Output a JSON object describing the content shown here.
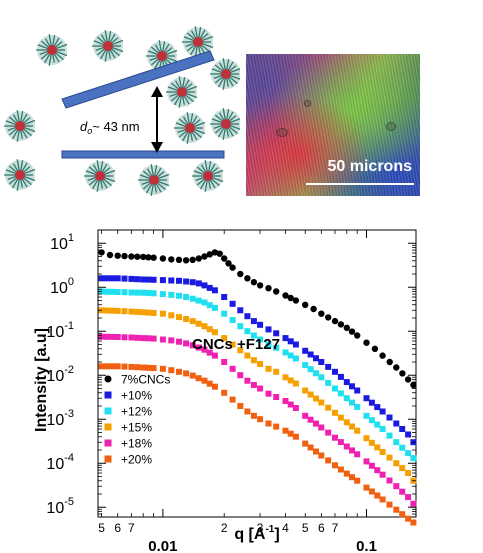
{
  "schematic": {
    "spacing_label": "d",
    "spacing_subscript": "o",
    "spacing_value": "~ 43 nm",
    "colors": {
      "bar": "#4a72c0",
      "bar_stroke": "#2a4a90",
      "micelle_shell": "#2e7a6e",
      "micelle_core": "#c0303a"
    }
  },
  "micrograph": {
    "scale_label": "50 microns"
  },
  "chart_data": {
    "type": "scatter",
    "x_scale": "log",
    "y_scale": "log",
    "xlim": [
      0.0048,
      0.175
    ],
    "ylim": [
      6e-06,
      20
    ],
    "xlabel": "q [A",
    "xlabel_sup": "-1",
    "xlabel_end": "]",
    "ylabel": "Intensity [a.u]",
    "annotation": "CNCs +F127",
    "x_major_ticks": [
      {
        "value": 0.01,
        "label": "0.01"
      },
      {
        "value": 0.1,
        "label": "0.1"
      }
    ],
    "x_minor_ticks": [
      {
        "value": 0.005,
        "label": "5"
      },
      {
        "value": 0.006,
        "label": "6"
      },
      {
        "value": 0.007,
        "label": "7"
      },
      {
        "value": 0.02,
        "label": "2"
      },
      {
        "value": 0.03,
        "label": "3"
      },
      {
        "value": 0.04,
        "label": "4"
      },
      {
        "value": 0.05,
        "label": "5"
      },
      {
        "value": 0.06,
        "label": "6"
      },
      {
        "value": 0.07,
        "label": "7"
      }
    ],
    "y_ticks": [
      {
        "value": 10,
        "base": "10",
        "exp": "1"
      },
      {
        "value": 1,
        "base": "10",
        "exp": "0"
      },
      {
        "value": 0.1,
        "base": "10",
        "exp": "-1"
      },
      {
        "value": 0.01,
        "base": "10",
        "exp": "-2"
      },
      {
        "value": 0.001,
        "base": "10",
        "exp": "-3"
      },
      {
        "value": 0.0001,
        "base": "10",
        "exp": "-4"
      },
      {
        "value": 1e-05,
        "base": "10",
        "exp": "-5"
      }
    ],
    "series": [
      {
        "name": "7%CNCs",
        "color": "#000000",
        "marker": "circle",
        "points": [
          [
            0.005,
            6.2
          ],
          [
            0.0055,
            5.4
          ],
          [
            0.006,
            5.2
          ],
          [
            0.007,
            5.0
          ],
          [
            0.008,
            4.9
          ],
          [
            0.009,
            4.7
          ],
          [
            0.01,
            4.5
          ],
          [
            0.011,
            4.3
          ],
          [
            0.012,
            4.2
          ],
          [
            0.013,
            4.1
          ],
          [
            0.014,
            4.2
          ],
          [
            0.015,
            4.5
          ],
          [
            0.016,
            5.0
          ],
          [
            0.017,
            5.6
          ],
          [
            0.018,
            6.2
          ],
          [
            0.019,
            5.8
          ],
          [
            0.02,
            4.5
          ],
          [
            0.021,
            3.5
          ],
          [
            0.022,
            2.8
          ],
          [
            0.024,
            2.0
          ],
          [
            0.026,
            1.6
          ],
          [
            0.028,
            1.3
          ],
          [
            0.03,
            1.1
          ],
          [
            0.033,
            0.95
          ],
          [
            0.036,
            0.8
          ],
          [
            0.04,
            0.65
          ],
          [
            0.045,
            0.5
          ],
          [
            0.05,
            0.4
          ],
          [
            0.055,
            0.32
          ],
          [
            0.06,
            0.25
          ],
          [
            0.07,
            0.17
          ],
          [
            0.08,
            0.12
          ],
          [
            0.09,
            0.08
          ],
          [
            0.1,
            0.055
          ],
          [
            0.11,
            0.04
          ],
          [
            0.12,
            0.028
          ],
          [
            0.13,
            0.02
          ],
          [
            0.14,
            0.015
          ],
          [
            0.15,
            0.011
          ],
          [
            0.16,
            0.008
          ],
          [
            0.17,
            0.006
          ]
        ]
      },
      {
        "name": "+10%",
        "color": "#1a1ae0",
        "marker": "square",
        "points": [
          [
            0.005,
            1.6
          ],
          [
            0.006,
            1.6
          ],
          [
            0.007,
            1.55
          ],
          [
            0.008,
            1.5
          ],
          [
            0.009,
            1.48
          ],
          [
            0.01,
            1.45
          ],
          [
            0.011,
            1.42
          ],
          [
            0.012,
            1.4
          ],
          [
            0.013,
            1.35
          ],
          [
            0.014,
            1.3
          ],
          [
            0.015,
            1.22
          ],
          [
            0.016,
            1.1
          ],
          [
            0.018,
            0.85
          ],
          [
            0.02,
            0.6
          ],
          [
            0.022,
            0.42
          ],
          [
            0.024,
            0.3
          ],
          [
            0.026,
            0.22
          ],
          [
            0.028,
            0.17
          ],
          [
            0.03,
            0.14
          ],
          [
            0.033,
            0.11
          ],
          [
            0.036,
            0.09
          ],
          [
            0.04,
            0.07
          ],
          [
            0.045,
            0.05
          ],
          [
            0.05,
            0.036
          ],
          [
            0.06,
            0.02
          ],
          [
            0.07,
            0.012
          ],
          [
            0.08,
            0.007
          ],
          [
            0.09,
            0.0045
          ],
          [
            0.1,
            0.003
          ],
          [
            0.12,
            0.0015
          ],
          [
            0.14,
            0.0008
          ],
          [
            0.16,
            0.00045
          ],
          [
            0.17,
            0.0003
          ]
        ]
      },
      {
        "name": "+12%",
        "color": "#20e0f0",
        "marker": "square",
        "points": [
          [
            0.005,
            0.8
          ],
          [
            0.006,
            0.78
          ],
          [
            0.007,
            0.76
          ],
          [
            0.008,
            0.75
          ],
          [
            0.009,
            0.73
          ],
          [
            0.01,
            0.7
          ],
          [
            0.011,
            0.67
          ],
          [
            0.012,
            0.64
          ],
          [
            0.013,
            0.6
          ],
          [
            0.014,
            0.55
          ],
          [
            0.016,
            0.45
          ],
          [
            0.018,
            0.34
          ],
          [
            0.02,
            0.25
          ],
          [
            0.022,
            0.18
          ],
          [
            0.024,
            0.13
          ],
          [
            0.026,
            0.1
          ],
          [
            0.028,
            0.08
          ],
          [
            0.03,
            0.065
          ],
          [
            0.033,
            0.05
          ],
          [
            0.036,
            0.042
          ],
          [
            0.04,
            0.033
          ],
          [
            0.045,
            0.024
          ],
          [
            0.05,
            0.017
          ],
          [
            0.06,
            0.009
          ],
          [
            0.07,
            0.005
          ],
          [
            0.08,
            0.003
          ],
          [
            0.09,
            0.0019
          ],
          [
            0.1,
            0.0012
          ],
          [
            0.12,
            0.0006
          ],
          [
            0.14,
            0.0003
          ],
          [
            0.16,
            0.00017
          ],
          [
            0.17,
            0.00013
          ]
        ]
      },
      {
        "name": "+15%",
        "color": "#f5a000",
        "marker": "square",
        "points": [
          [
            0.005,
            0.3
          ],
          [
            0.006,
            0.29
          ],
          [
            0.007,
            0.28
          ],
          [
            0.008,
            0.27
          ],
          [
            0.009,
            0.26
          ],
          [
            0.01,
            0.25
          ],
          [
            0.011,
            0.23
          ],
          [
            0.012,
            0.21
          ],
          [
            0.013,
            0.19
          ],
          [
            0.014,
            0.17
          ],
          [
            0.016,
            0.13
          ],
          [
            0.018,
            0.095
          ],
          [
            0.02,
            0.07
          ],
          [
            0.022,
            0.05
          ],
          [
            0.024,
            0.037
          ],
          [
            0.026,
            0.028
          ],
          [
            0.028,
            0.022
          ],
          [
            0.03,
            0.018
          ],
          [
            0.033,
            0.014
          ],
          [
            0.036,
            0.012
          ],
          [
            0.04,
            0.009
          ],
          [
            0.045,
            0.0065
          ],
          [
            0.05,
            0.0045
          ],
          [
            0.06,
            0.0024
          ],
          [
            0.07,
            0.0014
          ],
          [
            0.08,
            0.00085
          ],
          [
            0.09,
            0.00055
          ],
          [
            0.1,
            0.00037
          ],
          [
            0.12,
            0.00018
          ],
          [
            0.14,
            0.0001
          ],
          [
            0.16,
            6e-05
          ],
          [
            0.17,
            4e-05
          ]
        ]
      },
      {
        "name": "+18%",
        "color": "#f020b0",
        "marker": "square",
        "points": [
          [
            0.005,
            0.075
          ],
          [
            0.006,
            0.074
          ],
          [
            0.007,
            0.072
          ],
          [
            0.008,
            0.07
          ],
          [
            0.009,
            0.068
          ],
          [
            0.01,
            0.065
          ],
          [
            0.011,
            0.062
          ],
          [
            0.012,
            0.058
          ],
          [
            0.013,
            0.053
          ],
          [
            0.014,
            0.048
          ],
          [
            0.016,
            0.038
          ],
          [
            0.018,
            0.028
          ],
          [
            0.02,
            0.02
          ],
          [
            0.022,
            0.014
          ],
          [
            0.024,
            0.01
          ],
          [
            0.026,
            0.0075
          ],
          [
            0.028,
            0.006
          ],
          [
            0.03,
            0.005
          ],
          [
            0.033,
            0.0038
          ],
          [
            0.036,
            0.0032
          ],
          [
            0.04,
            0.0026
          ],
          [
            0.045,
            0.0018
          ],
          [
            0.05,
            0.0012
          ],
          [
            0.06,
            0.00065
          ],
          [
            0.07,
            0.00038
          ],
          [
            0.08,
            0.00024
          ],
          [
            0.09,
            0.00016
          ],
          [
            0.1,
            0.00011
          ],
          [
            0.12,
            5.5e-05
          ],
          [
            0.14,
            3e-05
          ],
          [
            0.16,
            1.7e-05
          ],
          [
            0.17,
            1.2e-05
          ]
        ]
      },
      {
        "name": "+20%",
        "color": "#f06010",
        "marker": "square",
        "points": [
          [
            0.005,
            0.016
          ],
          [
            0.006,
            0.016
          ],
          [
            0.007,
            0.0155
          ],
          [
            0.008,
            0.015
          ],
          [
            0.009,
            0.0145
          ],
          [
            0.01,
            0.014
          ],
          [
            0.011,
            0.013
          ],
          [
            0.012,
            0.012
          ],
          [
            0.013,
            0.011
          ],
          [
            0.014,
            0.0098
          ],
          [
            0.016,
            0.0075
          ],
          [
            0.018,
            0.0055
          ],
          [
            0.02,
            0.004
          ],
          [
            0.022,
            0.0028
          ],
          [
            0.024,
            0.002
          ],
          [
            0.026,
            0.0015
          ],
          [
            0.028,
            0.0012
          ],
          [
            0.03,
            0.001
          ],
          [
            0.033,
            0.0008
          ],
          [
            0.036,
            0.00068
          ],
          [
            0.04,
            0.00055
          ],
          [
            0.045,
            0.0004
          ],
          [
            0.05,
            0.00028
          ],
          [
            0.06,
            0.00015
          ],
          [
            0.07,
            9e-05
          ],
          [
            0.08,
            5.8e-05
          ],
          [
            0.09,
            4e-05
          ],
          [
            0.1,
            2.8e-05
          ],
          [
            0.12,
            1.5e-05
          ],
          [
            0.14,
            8.8e-06
          ],
          [
            0.16,
            5.5e-06
          ],
          [
            0.17,
            4.5e-06
          ]
        ]
      }
    ]
  }
}
